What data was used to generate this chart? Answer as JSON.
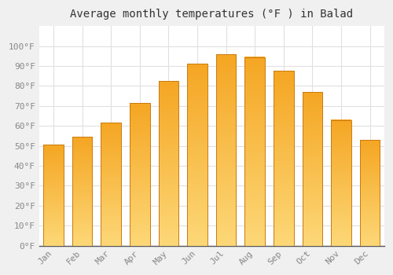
{
  "title": "Average monthly temperatures (°F ) in Balad",
  "months": [
    "Jan",
    "Feb",
    "Mar",
    "Apr",
    "May",
    "Jun",
    "Jul",
    "Aug",
    "Sep",
    "Oct",
    "Nov",
    "Dec"
  ],
  "values": [
    50.5,
    54.5,
    61.5,
    71.5,
    82.5,
    91.0,
    96.0,
    94.5,
    87.5,
    77.0,
    63.0,
    53.0
  ],
  "bar_color": "#F5A623",
  "bar_edge_color": "#C97A10",
  "background_color": "#f0f0f0",
  "plot_bg_color": "#ffffff",
  "grid_color": "#e0e0e0",
  "ylim": [
    0,
    110
  ],
  "yticks": [
    0,
    10,
    20,
    30,
    40,
    50,
    60,
    70,
    80,
    90,
    100
  ],
  "ytick_labels": [
    "0°F",
    "10°F",
    "20°F",
    "30°F",
    "40°F",
    "50°F",
    "60°F",
    "70°F",
    "80°F",
    "90°F",
    "100°F"
  ],
  "title_fontsize": 10,
  "tick_fontsize": 8,
  "tick_color": "#888888",
  "font_family": "monospace",
  "bar_width": 0.7
}
